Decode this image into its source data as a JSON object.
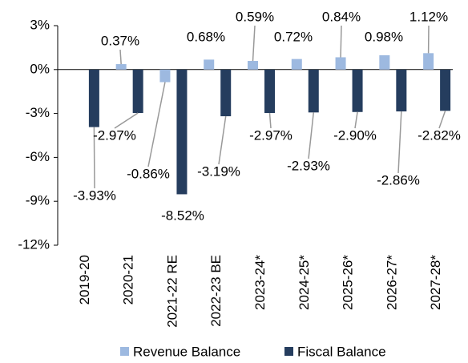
{
  "chart_data": {
    "type": "bar",
    "categories": [
      "2019-20",
      "2020-21",
      "2021-22 RE",
      "2022-23 BE",
      "2023-24*",
      "2024-25*",
      "2025-26*",
      "2026-27*",
      "2027-28*"
    ],
    "series": [
      {
        "name": "Revenue Balance",
        "color": "#9db9e0",
        "values": [
          null,
          0.37,
          -0.86,
          0.68,
          0.59,
          0.72,
          0.84,
          0.98,
          1.12
        ],
        "value_labels": [
          null,
          "0.37%",
          "-0.86%",
          "0.68%",
          "0.59%",
          "0.72%",
          "0.84%",
          "0.98%",
          "1.12%"
        ]
      },
      {
        "name": "Fiscal Balance",
        "color": "#253d5e",
        "values": [
          -3.93,
          -2.97,
          -8.52,
          -3.19,
          -2.97,
          -2.93,
          -2.9,
          -2.86,
          -2.82
        ],
        "value_labels": [
          "-3.93%",
          "-2.97%",
          "-8.52%",
          "-3.19%",
          "-2.97%",
          "-2.93%",
          "-2.90%",
          "-2.86%",
          "-2.82%"
        ]
      }
    ],
    "ylim": [
      -12,
      3
    ],
    "yticks": [
      {
        "value": 3,
        "label": "3%"
      },
      {
        "value": 0,
        "label": "0%"
      },
      {
        "value": -3,
        "label": "-3%"
      },
      {
        "value": -6,
        "label": "-6%"
      },
      {
        "value": -9,
        "label": "-9%"
      },
      {
        "value": -12,
        "label": "-12%"
      }
    ],
    "legend": "bottom"
  }
}
